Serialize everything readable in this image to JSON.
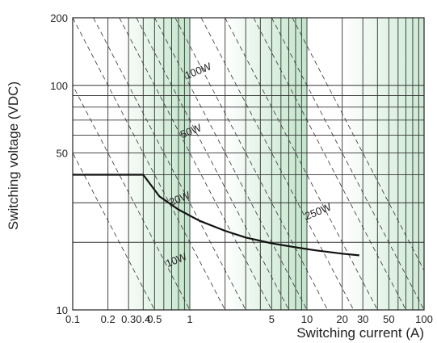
{
  "chart_data": {
    "type": "line",
    "title": "",
    "xlabel": "Switching current (A)",
    "ylabel": "Switching voltage (VDC)",
    "x_scale": "log",
    "y_scale": "log",
    "xlim": [
      0.1,
      100
    ],
    "ylim": [
      10,
      200
    ],
    "x_tick_labels": [
      {
        "value": 0.1,
        "label": "0.1"
      },
      {
        "value": 0.2,
        "label": "0.2"
      },
      {
        "value": 0.3,
        "label": "0.3"
      },
      {
        "value": 0.4,
        "label": "0.4"
      },
      {
        "value": 0.5,
        "label": "0.5"
      },
      {
        "value": 1,
        "label": "1"
      },
      {
        "value": 5,
        "label": "5"
      },
      {
        "value": 10,
        "label": "10"
      },
      {
        "value": 20,
        "label": "20"
      },
      {
        "value": 30,
        "label": "30"
      },
      {
        "value": 50,
        "label": "50"
      },
      {
        "value": 100,
        "label": "100"
      }
    ],
    "y_tick_labels": [
      {
        "value": 10,
        "label": "10"
      },
      {
        "value": 50,
        "label": "50"
      },
      {
        "value": 100,
        "label": "100"
      },
      {
        "value": 200,
        "label": "200"
      }
    ],
    "x_gridlines": [
      0.1,
      0.2,
      0.3,
      0.4,
      0.5,
      0.6,
      0.7,
      0.8,
      0.9,
      1,
      2,
      3,
      4,
      5,
      6,
      7,
      8,
      9,
      10,
      20,
      30,
      40,
      50,
      60,
      70,
      80,
      90,
      100
    ],
    "y_gridlines": [
      10,
      20,
      30,
      40,
      50,
      60,
      70,
      80,
      90,
      100,
      200
    ],
    "grid": true,
    "series": [
      {
        "name": "",
        "color": "#111111",
        "x": [
          0.1,
          0.4,
          0.55,
          0.8,
          1.2,
          2,
          3,
          5,
          8,
          12,
          20,
          28
        ],
        "y": [
          40,
          40,
          32,
          28,
          25,
          22.5,
          21,
          19.8,
          19,
          18.4,
          17.8,
          17.5
        ]
      }
    ],
    "power_lines": [
      {
        "label": "10W",
        "watts": 10
      },
      {
        "label": "20W",
        "watts": 20
      },
      {
        "label": "50W",
        "watts": 50
      },
      {
        "label": "100W",
        "watts": 100
      },
      {
        "label": "250W",
        "watts": 250
      }
    ],
    "shading_color": "#8fcf9f"
  }
}
